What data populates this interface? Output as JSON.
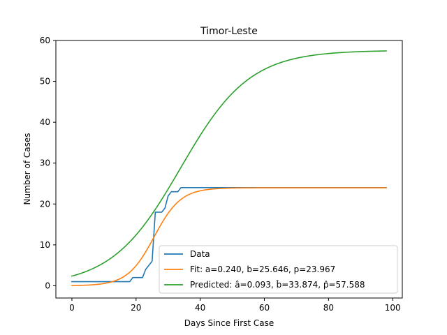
{
  "chart_data": {
    "type": "line",
    "title": "Timor-Leste",
    "xlabel": "Days Since First Case",
    "ylabel": "Number of Cases",
    "xlim": [
      -5,
      103
    ],
    "ylim": [
      -3,
      60
    ],
    "xticks": [
      0,
      20,
      40,
      60,
      80,
      100
    ],
    "yticks": [
      0,
      10,
      20,
      30,
      40,
      50,
      60
    ],
    "grid": false,
    "legend_position": "lower-right",
    "series": [
      {
        "name": "Data",
        "color": "#1f77b4",
        "kind": "step-data",
        "x": [
          0,
          18,
          19,
          22,
          23,
          25,
          26,
          28,
          29,
          30,
          31,
          33,
          34,
          98
        ],
        "y": [
          1,
          1,
          2,
          2,
          4,
          6,
          18,
          18,
          19,
          22,
          23,
          23,
          24,
          24
        ]
      },
      {
        "name": "Fit: a=0.240, b=25.646, p=23.967",
        "color": "#ff7f0e",
        "kind": "logistic",
        "a": 0.24,
        "b": 25.646,
        "p": 23.967,
        "x_range": [
          0,
          98
        ]
      },
      {
        "name": "Predicted: â=0.093, b̂=33.874, p̂=57.588",
        "color": "#2ca02c",
        "kind": "logistic",
        "a": 0.093,
        "b": 33.874,
        "p": 57.588,
        "x_range": [
          0,
          98
        ]
      }
    ]
  }
}
